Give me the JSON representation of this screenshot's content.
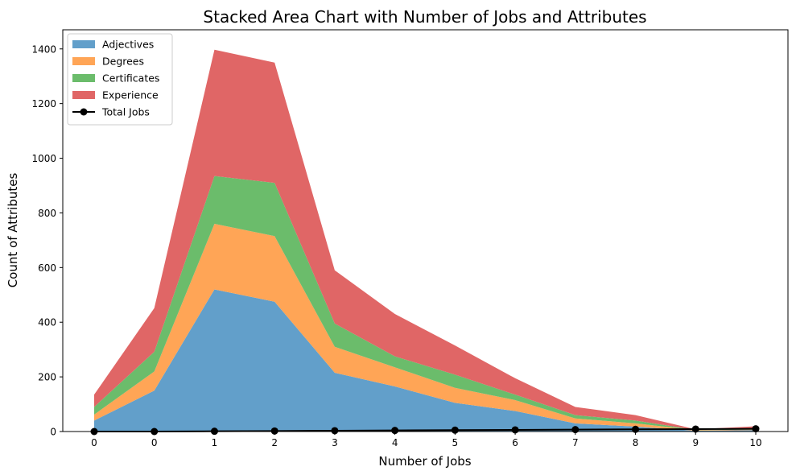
{
  "chart_data": {
    "type": "area",
    "stacked": true,
    "title": "Stacked Area Chart with Number of Jobs and Attributes",
    "xlabel": "Number of Jobs",
    "ylabel": "Count of Attributes",
    "x_tick_labels": [
      "0",
      "0",
      "1",
      "2",
      "3",
      "4",
      "5",
      "6",
      "7",
      "8",
      "9",
      "10"
    ],
    "ylim": [
      0,
      1470
    ],
    "yticks": [
      0,
      200,
      400,
      600,
      800,
      1000,
      1200,
      1400
    ],
    "grid": false,
    "legend_position": "top-left",
    "series": [
      {
        "name": "Adjectives",
        "color": "#629fca",
        "values": [
          40,
          150,
          520,
          475,
          215,
          165,
          105,
          75,
          30,
          18,
          3,
          5
        ]
      },
      {
        "name": "Degrees",
        "color": "#ffa556",
        "values": [
          22,
          70,
          240,
          240,
          95,
          70,
          55,
          40,
          18,
          12,
          2,
          2
        ]
      },
      {
        "name": "Certificates",
        "color": "#6bbc6b",
        "values": [
          28,
          72,
          175,
          195,
          85,
          40,
          48,
          20,
          12,
          10,
          1,
          2
        ]
      },
      {
        "name": "Experience",
        "color": "#e06666",
        "values": [
          45,
          160,
          462,
          440,
          195,
          155,
          107,
          60,
          30,
          20,
          2,
          10
        ]
      }
    ],
    "line_series": {
      "name": "Total Jobs",
      "color": "#000000",
      "values": [
        0,
        0,
        1,
        2,
        3,
        4,
        5,
        6,
        7,
        8,
        9,
        10
      ]
    }
  }
}
